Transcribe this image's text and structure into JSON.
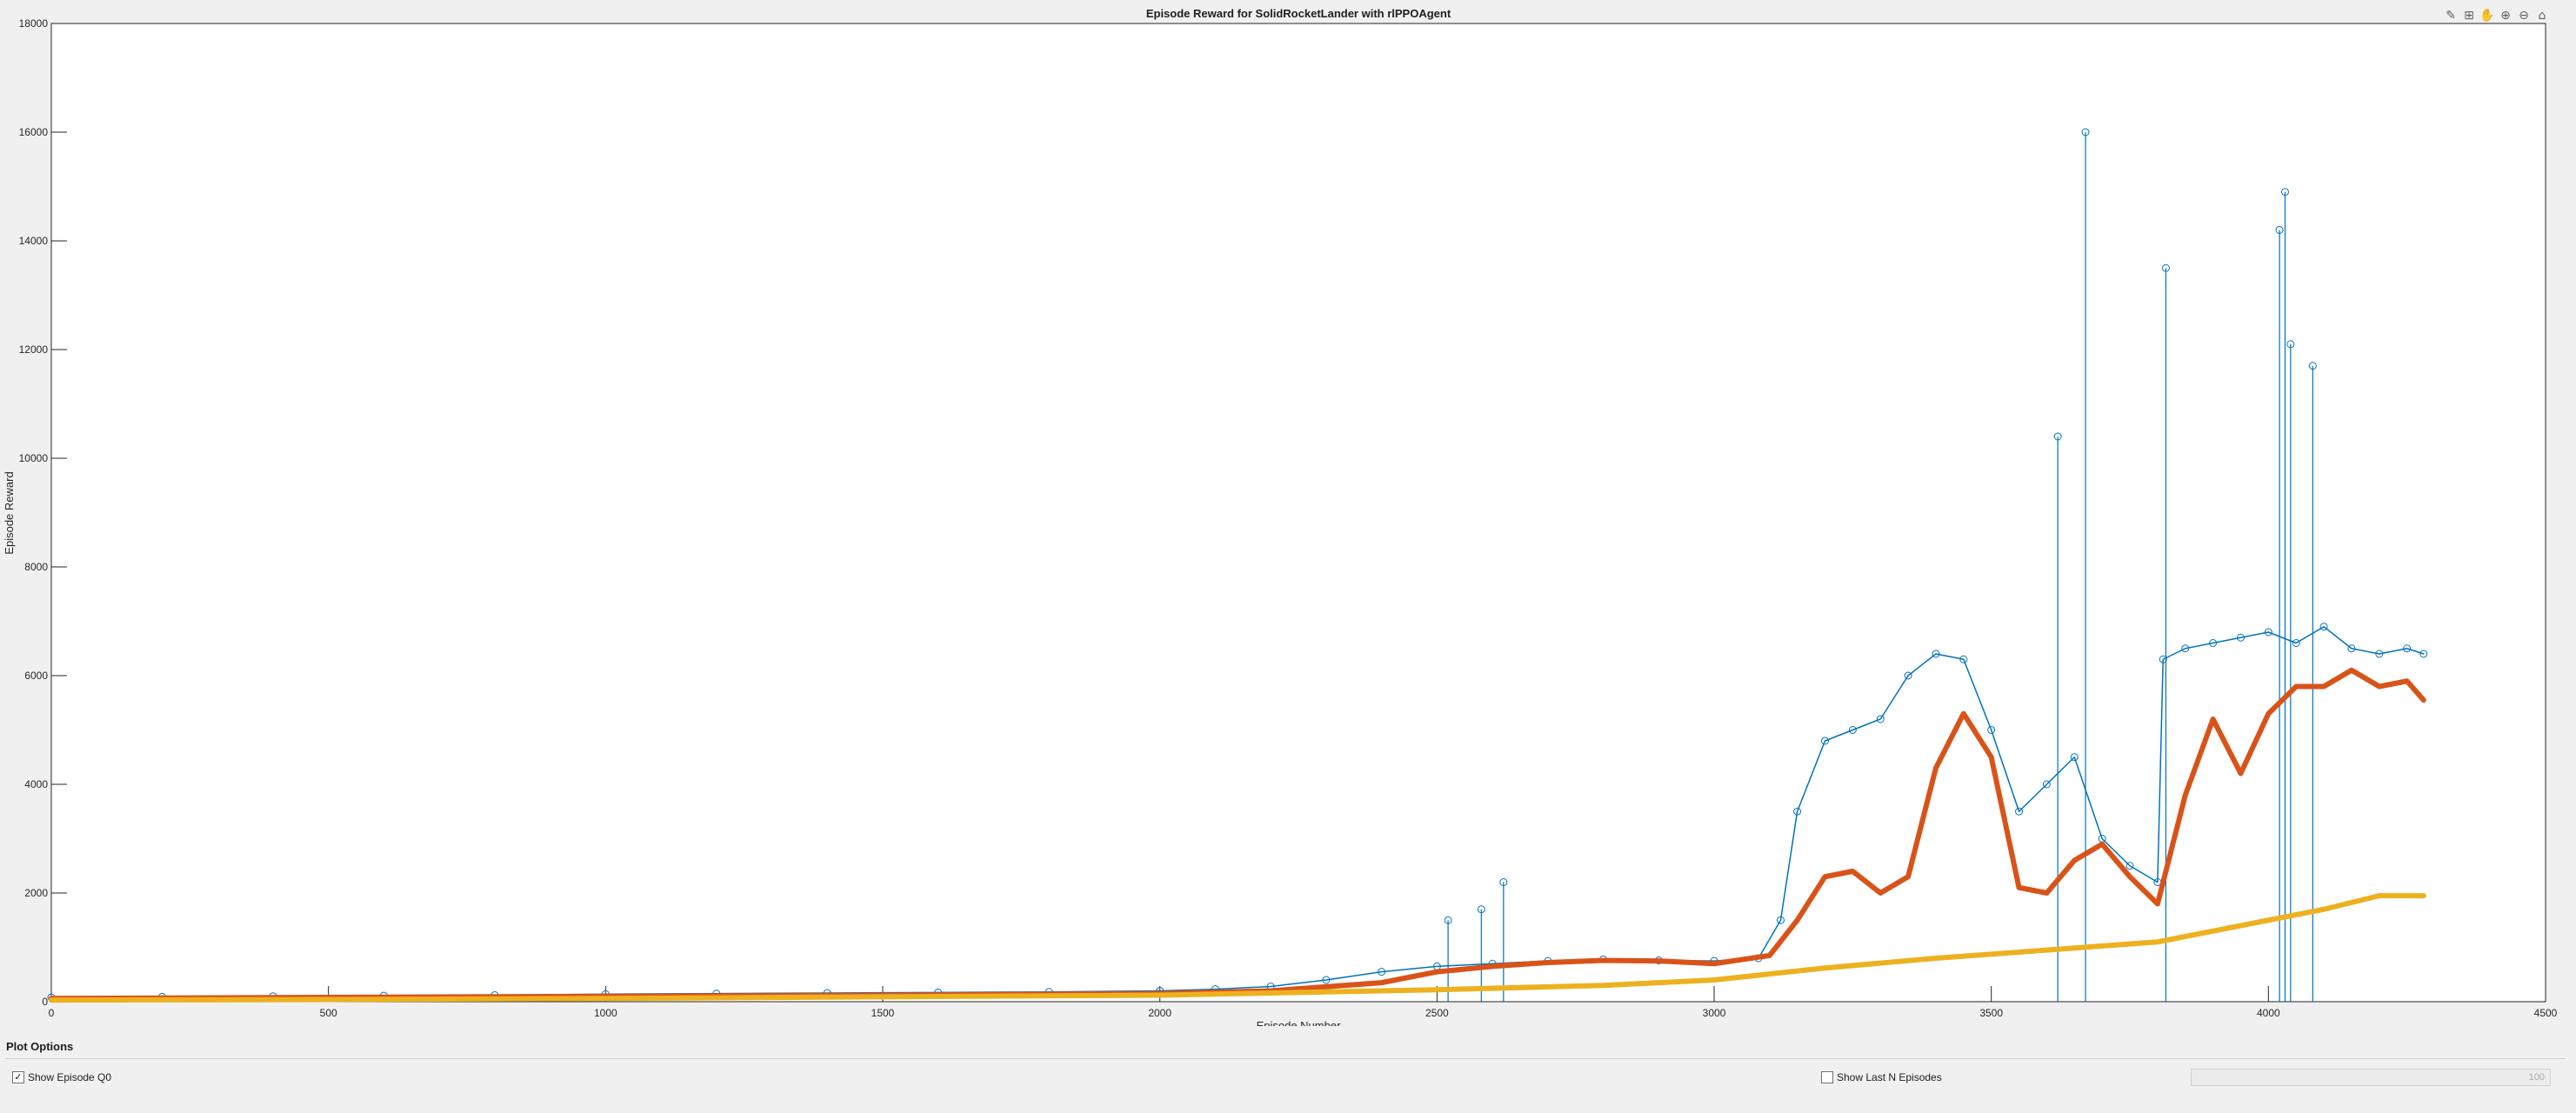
{
  "toolbar": {
    "icons": [
      "brush-icon",
      "datatip-icon",
      "pan-icon",
      "zoom-in-icon",
      "zoom-out-icon",
      "home-icon"
    ]
  },
  "chart_data": {
    "type": "line",
    "title": "Episode Reward for SolidRocketLander with rlPPOAgent",
    "xlabel": "Episode Number",
    "ylabel": "Episode Reward",
    "xlim": [
      0,
      4500
    ],
    "ylim": [
      0,
      18000
    ],
    "xticks": [
      "0",
      "500",
      "1000",
      "1500",
      "2000",
      "2500",
      "3000",
      "3500",
      "4000",
      "4500"
    ],
    "yticks": [
      "0",
      "2000",
      "4000",
      "6000",
      "8000",
      "10000",
      "12000",
      "14000",
      "16000",
      "18000"
    ],
    "grid": false,
    "series": [
      {
        "color": "#0072bd",
        "marker": "circle",
        "x": [
          0,
          200,
          400,
          600,
          800,
          1000,
          1200,
          1400,
          1600,
          1800,
          2000,
          2100,
          2200,
          2300,
          2400,
          2500,
          2600,
          2700,
          2800,
          2900,
          3000,
          3080,
          3120,
          3150,
          3200,
          3250,
          3300,
          3350,
          3400,
          3450,
          3500,
          3550,
          3600,
          3650,
          3700,
          3750,
          3800,
          3810,
          3850,
          3900,
          3950,
          4000,
          4050,
          4100,
          4150,
          4200,
          4250,
          4280
        ],
        "y": [
          80,
          90,
          100,
          110,
          120,
          140,
          150,
          160,
          170,
          180,
          200,
          230,
          280,
          400,
          550,
          650,
          700,
          750,
          780,
          760,
          750,
          800,
          1500,
          3500,
          4800,
          5000,
          5200,
          6000,
          6400,
          6300,
          5000,
          3500,
          4000,
          4500,
          3000,
          2500,
          2200,
          6300,
          6500,
          6600,
          6700,
          6800,
          6600,
          6900,
          6500,
          6400,
          6500,
          6400
        ],
        "spikes": [
          [
            3620,
            10400
          ],
          [
            3670,
            16000
          ],
          [
            3815,
            13500
          ],
          [
            4020,
            14200
          ],
          [
            4030,
            14900
          ],
          [
            4040,
            12100
          ],
          [
            4080,
            11700
          ],
          [
            2620,
            2200
          ],
          [
            2520,
            1500
          ],
          [
            2580,
            1700
          ]
        ]
      },
      {
        "color": "#d95319",
        "x": [
          0,
          500,
          1000,
          1500,
          2000,
          2200,
          2400,
          2500,
          2600,
          2700,
          2800,
          2900,
          3000,
          3100,
          3150,
          3200,
          3250,
          3300,
          3350,
          3400,
          3450,
          3500,
          3550,
          3600,
          3650,
          3700,
          3750,
          3800,
          3850,
          3900,
          3950,
          4000,
          4050,
          4100,
          4150,
          4200,
          4250,
          4280
        ],
        "y": [
          60,
          80,
          100,
          120,
          150,
          200,
          350,
          550,
          650,
          720,
          760,
          750,
          700,
          850,
          1500,
          2300,
          2400,
          2000,
          2300,
          4300,
          5300,
          4500,
          2100,
          2000,
          2600,
          2900,
          2300,
          1800,
          3800,
          5200,
          4200,
          5300,
          5800,
          5800,
          6100,
          5800,
          5900,
          5550
        ]
      },
      {
        "color": "#edb120",
        "x": [
          0,
          500,
          1000,
          1500,
          2000,
          2500,
          2800,
          3000,
          3200,
          3400,
          3600,
          3800,
          4000,
          4100,
          4200,
          4280
        ],
        "y": [
          30,
          40,
          60,
          90,
          120,
          220,
          300,
          400,
          620,
          800,
          950,
          1100,
          1500,
          1700,
          1950,
          1950
        ]
      }
    ]
  },
  "plot_options": {
    "title": "Plot Options",
    "show_q0_label": "Show Episode Q0",
    "show_q0_checked": true,
    "show_last_n_label": "Show Last N Episodes",
    "show_last_n_checked": false,
    "n_value": "100"
  }
}
